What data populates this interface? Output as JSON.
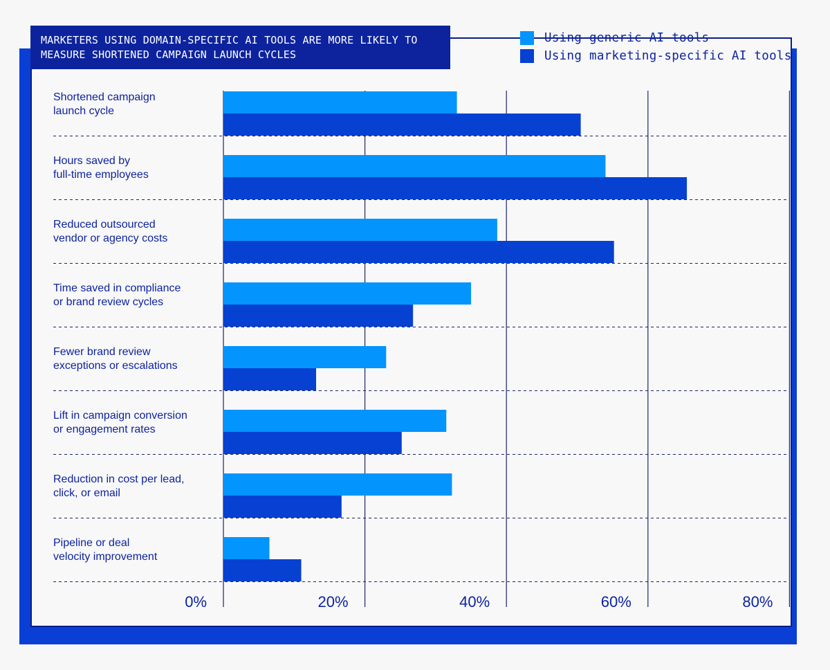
{
  "title": "Marketers using domain-specific AI tools are more likely to measure shortened campaign launch cycles",
  "legend": {
    "series_1": "Using generic AI tools",
    "series_2": "Using marketing-specific AI tools"
  },
  "colors": {
    "series_1": "#0394fd",
    "series_2": "#0741d2",
    "text": "#0d239e",
    "grid": "#1b2366"
  },
  "chart_data": {
    "type": "bar",
    "orientation": "horizontal",
    "title": "Marketers using domain-specific AI tools are more likely to measure shortened campaign launch cycles",
    "categories": [
      [
        "Shortened campaign",
        "launch cycle"
      ],
      [
        "Hours saved by",
        "full-time employees"
      ],
      [
        "Reduced outsourced",
        "vendor or agency costs"
      ],
      [
        "Time saved in compliance",
        "or brand review cycles"
      ],
      [
        "Fewer brand review",
        "exceptions or escalations"
      ],
      [
        "Lift in campaign conversion",
        "or engagement rates"
      ],
      [
        "Reduction in cost per lead,",
        "click, or email"
      ],
      [
        "Pipeline or deal",
        "velocity improvement"
      ]
    ],
    "series": [
      {
        "name": "Using generic AI tools",
        "values": [
          33,
          54,
          38.7,
          35,
          23,
          31.5,
          32.3,
          6.5
        ]
      },
      {
        "name": "Using marketing-specific AI tools",
        "values": [
          50.5,
          65.5,
          55.2,
          26.8,
          13.1,
          25.2,
          16.7,
          11
        ]
      }
    ],
    "xlim": [
      0,
      80
    ],
    "x_ticks": [
      0,
      20,
      40,
      60,
      80
    ],
    "x_tick_labels": [
      "0%",
      "20%",
      "40%",
      "60%",
      "80%"
    ],
    "legend_position": "top-right",
    "grid": true
  }
}
